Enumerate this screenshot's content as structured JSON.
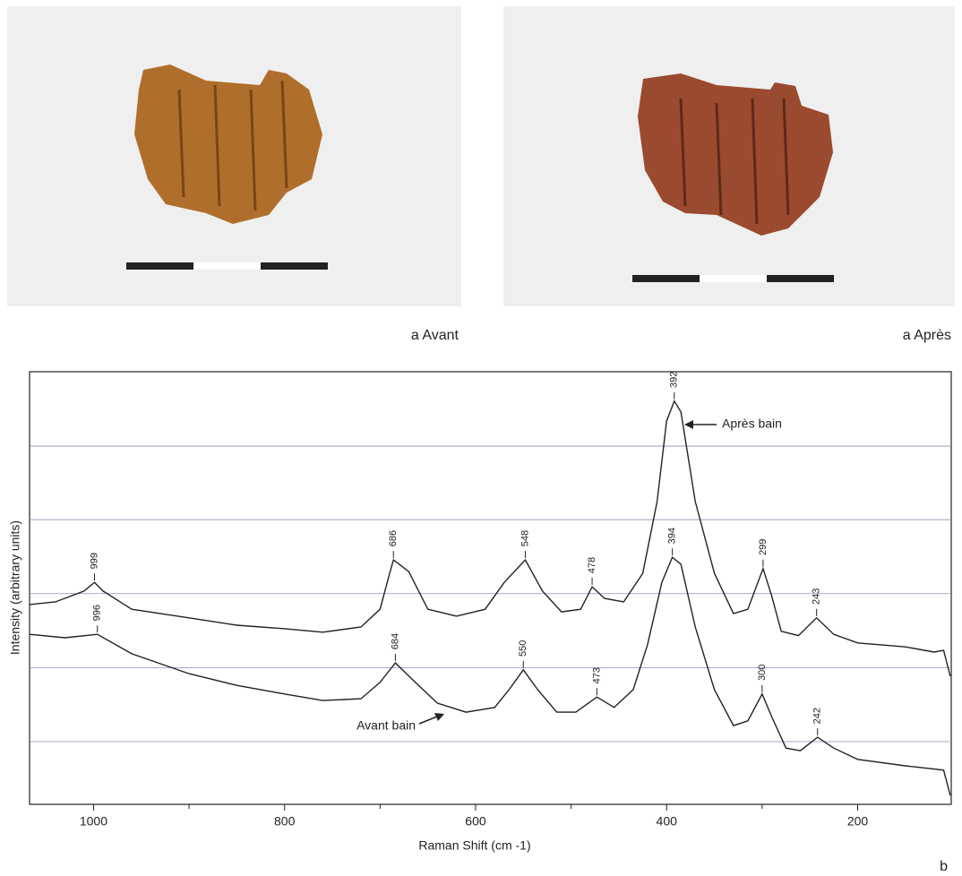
{
  "captions": {
    "left": "a Avant",
    "right": "a Après",
    "figure": "b"
  },
  "chart_data": {
    "type": "line",
    "x_label": "Raman Shift (cm -1)",
    "y_label": "Intensity (arbitrary units)",
    "xlim": [
      1067,
      102
    ],
    "xticks": [
      1000,
      800,
      600,
      400,
      200
    ],
    "xminor": [
      900,
      700,
      500,
      300
    ],
    "ylim": [
      0,
      100
    ],
    "ygrid": [
      14.5,
      31.6,
      48.7,
      65.8,
      82.8
    ],
    "grid": true,
    "series": [
      {
        "name": "Après bain",
        "color": "#222222",
        "x": [
          1067,
          1040,
          1010,
          999,
          990,
          960,
          900,
          850,
          800,
          760,
          720,
          700,
          690,
          686,
          670,
          650,
          620,
          590,
          570,
          548,
          530,
          510,
          490,
          478,
          465,
          445,
          425,
          410,
          400,
          392,
          385,
          370,
          350,
          330,
          315,
          299,
          290,
          280,
          262,
          243,
          225,
          200,
          150,
          120,
          110,
          103
        ],
        "values": [
          46.2,
          46.8,
          49.3,
          51.3,
          49.3,
          45.1,
          43.1,
          41.4,
          40.6,
          39.8,
          41.0,
          45.1,
          53.4,
          56.5,
          53.8,
          45.1,
          43.5,
          45.1,
          51.3,
          56.5,
          49.3,
          44.5,
          45.1,
          50.3,
          47.6,
          46.8,
          53.4,
          70.0,
          88.6,
          93.2,
          90.7,
          70.0,
          53.4,
          44.1,
          45.1,
          54.5,
          48.2,
          40.0,
          39.0,
          43.1,
          39.3,
          37.3,
          36.4,
          35.2,
          35.6,
          29.6
        ],
        "peaks": [
          999,
          686,
          548,
          478,
          392,
          299,
          243
        ]
      },
      {
        "name": "Avant bain",
        "color": "#222222",
        "x": [
          1067,
          1030,
          996,
          960,
          900,
          850,
          800,
          760,
          720,
          700,
          684,
          665,
          640,
          610,
          580,
          565,
          550,
          535,
          515,
          495,
          473,
          455,
          435,
          420,
          405,
          394,
          385,
          370,
          350,
          330,
          315,
          300,
          290,
          275,
          260,
          242,
          225,
          200,
          150,
          110,
          103
        ],
        "values": [
          39.3,
          38.5,
          39.3,
          34.8,
          30.2,
          27.5,
          25.5,
          24.0,
          24.4,
          28.2,
          32.7,
          28.6,
          23.4,
          21.3,
          22.4,
          26.5,
          31.1,
          26.5,
          21.3,
          21.3,
          24.8,
          22.4,
          26.5,
          36.9,
          51.3,
          57.1,
          55.5,
          41.0,
          26.5,
          18.2,
          19.3,
          25.5,
          20.3,
          13.0,
          12.4,
          15.5,
          13.0,
          10.4,
          8.9,
          7.9,
          2.1
        ],
        "peaks": [
          996,
          684,
          550,
          473,
          394,
          300,
          242
        ]
      }
    ]
  }
}
